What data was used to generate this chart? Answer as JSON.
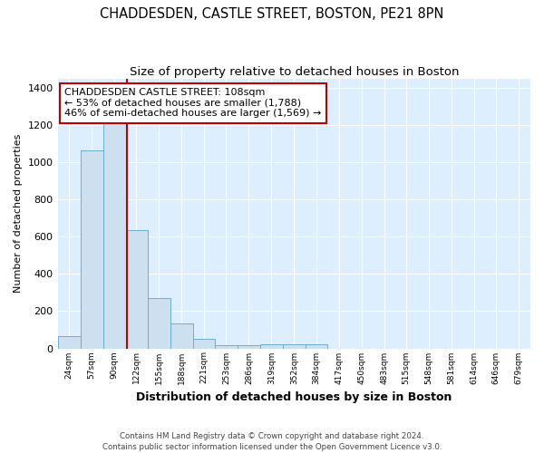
{
  "title": "CHADDESDEN, CASTLE STREET, BOSTON, PE21 8PN",
  "subtitle": "Size of property relative to detached houses in Boston",
  "xlabel": "Distribution of detached houses by size in Boston",
  "ylabel": "Number of detached properties",
  "bin_labels": [
    "24sqm",
    "57sqm",
    "90sqm",
    "122sqm",
    "155sqm",
    "188sqm",
    "221sqm",
    "253sqm",
    "286sqm",
    "319sqm",
    "352sqm",
    "384sqm",
    "417sqm",
    "450sqm",
    "483sqm",
    "515sqm",
    "548sqm",
    "581sqm",
    "614sqm",
    "646sqm",
    "679sqm"
  ],
  "bin_edges": [
    7.5,
    40.5,
    73.5,
    106.5,
    139,
    172,
    204.5,
    237,
    269.5,
    302.5,
    335.5,
    368,
    400.5,
    433.5,
    466.5,
    499,
    531.5,
    564.5,
    597.5,
    630,
    663,
    696
  ],
  "tick_positions": [
    24,
    57,
    90,
    122,
    155,
    188,
    221,
    253,
    286,
    319,
    352,
    384,
    417,
    450,
    483,
    515,
    548,
    581,
    614,
    646,
    679
  ],
  "bar_heights": [
    65,
    1065,
    1255,
    635,
    270,
    135,
    50,
    18,
    15,
    20,
    22,
    20,
    0,
    0,
    0,
    0,
    0,
    0,
    0,
    0,
    0
  ],
  "bar_color": "#cce0f0",
  "bar_edge_color": "#6aaed6",
  "property_size": 108,
  "vline_color": "#c00000",
  "annotation_line1": "CHADDESDEN CASTLE STREET: 108sqm",
  "annotation_line2": "← 53% of detached houses are smaller (1,788)",
  "annotation_line3": "46% of semi-detached houses are larger (1,569) →",
  "annotation_box_color": "#ffffff",
  "annotation_box_edge_color": "#c00000",
  "ylim": [
    0,
    1450
  ],
  "yticks": [
    0,
    200,
    400,
    600,
    800,
    1000,
    1200,
    1400
  ],
  "footer": "Contains HM Land Registry data © Crown copyright and database right 2024.\nContains public sector information licensed under the Open Government Licence v3.0.",
  "fig_bg_color": "#ffffff",
  "plot_bg_color": "#ddeeff",
  "title_fontsize": 10.5,
  "subtitle_fontsize": 9.5,
  "annotation_fontsize": 8
}
